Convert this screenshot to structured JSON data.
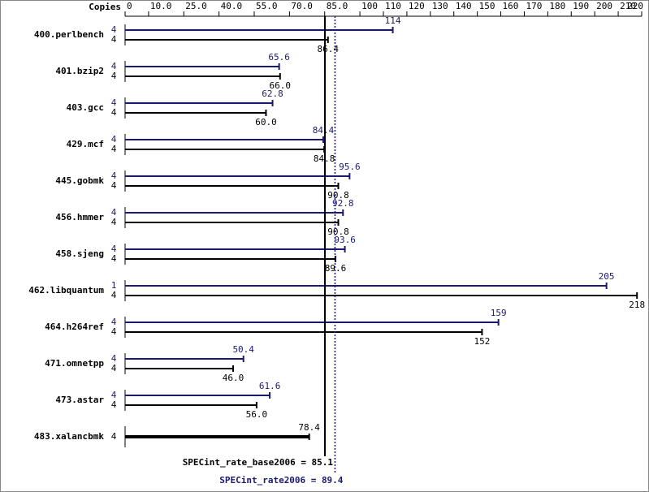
{
  "chart_data": {
    "type": "spec-bar",
    "axis_label": "Copies",
    "categories": [
      "400.perlbench",
      "401.bzip2",
      "403.gcc",
      "429.mcf",
      "445.gobmk",
      "456.hmmer",
      "458.sjeng",
      "462.libquantum",
      "464.h264ref",
      "471.omnetpp",
      "473.astar",
      "483.xalancbmk"
    ],
    "series": [
      {
        "name": "SPECint_rate2006",
        "color": "#191970",
        "copies": [
          4,
          4,
          4,
          4,
          4,
          4,
          4,
          1,
          4,
          4,
          4,
          null
        ],
        "values": [
          114,
          65.6,
          62.8,
          84.4,
          95.6,
          92.8,
          93.6,
          205,
          159,
          50.4,
          61.6,
          null
        ]
      },
      {
        "name": "SPECint_rate_base2006",
        "color": "#000000",
        "copies": [
          4,
          4,
          4,
          4,
          4,
          4,
          4,
          4,
          4,
          4,
          4,
          4
        ],
        "values": [
          86.4,
          66.0,
          60.0,
          84.8,
          90.8,
          90.8,
          89.6,
          218,
          152,
          46.0,
          56.0,
          78.4
        ],
        "value_labels": [
          "86.4",
          "66.0",
          "60.0",
          "84.8",
          "90.8",
          "90.8",
          "89.6",
          "218",
          "152",
          "46.0",
          "56.0",
          "78.4"
        ]
      }
    ],
    "xlim": [
      0,
      220
    ],
    "xticks": [
      0,
      {
        "value": 10,
        "label": "10.0"
      },
      {
        "value": 25,
        "label": "25.0"
      },
      {
        "value": 40,
        "label": "40.0"
      },
      {
        "value": 55,
        "label": "55.0"
      },
      {
        "value": 70,
        "label": "70.0"
      },
      {
        "value": 85,
        "label": "85.0"
      },
      100,
      110,
      120,
      130,
      140,
      150,
      160,
      170,
      180,
      190,
      200,
      210,
      220
    ],
    "reference_lines": [
      {
        "label": "SPECint_rate_base2006 =",
        "value": 85.1,
        "color": "#000000",
        "style": "solid"
      },
      {
        "label": "SPECint_rate2006 =",
        "value": 89.4,
        "color": "#191970",
        "style": "dotted"
      }
    ]
  }
}
